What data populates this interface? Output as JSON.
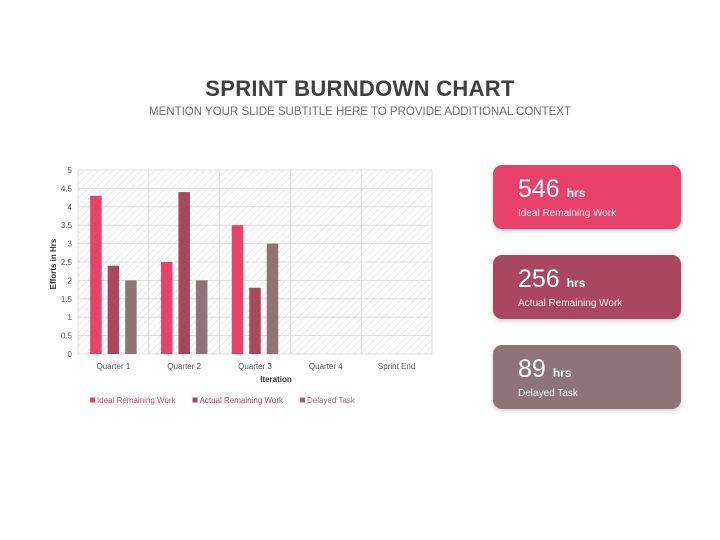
{
  "header": {
    "title": "SPRINT BURNDOWN CHART",
    "subtitle": "MENTION YOUR SLIDE SUBTITLE HERE TO PROVIDE ADDITIONAL CONTEXT"
  },
  "chart_data": {
    "type": "bar",
    "title": "",
    "xlabel": "Iteration",
    "ylabel": "Efforts in Hrs",
    "ylim": [
      0,
      5
    ],
    "yticks": [
      "0",
      "0.5",
      "1",
      "1.5",
      "2",
      "2.5",
      "3",
      "3.5",
      "4",
      "4.5",
      "5"
    ],
    "categories": [
      "Quarter 1",
      "Quarter 2",
      "Quarter 3",
      "Quarter 4",
      "Sprint End"
    ],
    "series": [
      {
        "name": "Ideal Remaining Work",
        "values": [
          4.3,
          2.5,
          3.5,
          null,
          null
        ],
        "color": "#e8416a"
      },
      {
        "name": "Actual Remaining Work",
        "values": [
          2.4,
          4.4,
          1.8,
          null,
          null
        ],
        "color": "#a8475f"
      },
      {
        "name": "Delayed Task",
        "values": [
          2.0,
          2.0,
          3.0,
          null,
          null
        ],
        "color": "#8e7378"
      }
    ],
    "grid": true,
    "legend_position": "bottom-left"
  },
  "cards": [
    {
      "value": "546",
      "unit": "hrs",
      "label": "Ideal Remaining Work",
      "color": "#e8416a"
    },
    {
      "value": "256",
      "unit": "hrs",
      "label": "Actual Remaining Work",
      "color": "#a8475f"
    },
    {
      "value": "89",
      "unit": "hrs",
      "label": "Delayed Task",
      "color": "#8e7378"
    }
  ]
}
